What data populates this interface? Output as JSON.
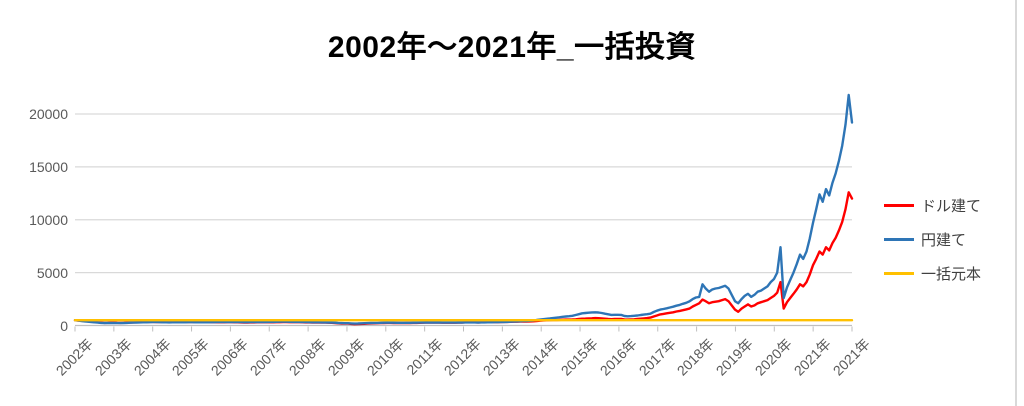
{
  "title": "2002年〜2021年_一括投資",
  "legend": {
    "items": [
      {
        "label": "ドル建て",
        "color": "#FF0000"
      },
      {
        "label": "円建て",
        "color": "#2E75B6"
      },
      {
        "label": "一括元本",
        "color": "#FFC000"
      }
    ]
  },
  "colors": {
    "grid": "#D9D9D9",
    "axis": "#BFBFBF",
    "axis_text": "#595959",
    "title_text": "#000000"
  },
  "chart_data": {
    "type": "line",
    "title": "2002年〜2021年_一括投資",
    "xlabel": "",
    "ylabel": "",
    "ylim": [
      0,
      22000
    ],
    "y_ticks": [
      0,
      5000,
      10000,
      15000,
      20000
    ],
    "grid": true,
    "legend_position": "right",
    "x_labels": [
      "2002年",
      "2003年",
      "2004年",
      "2005年",
      "2006年",
      "2007年",
      "2008年",
      "2009年",
      "2010年",
      "2011年",
      "2012年",
      "2013年",
      "2014年",
      "2015年",
      "2016年",
      "2017年",
      "2018年",
      "2019年",
      "2020年",
      "2021年",
      "2021年"
    ],
    "x_start_year": 2002,
    "points_per_year": 12,
    "series": [
      {
        "name": "ドル建て",
        "color": "#FF0000",
        "values": [
          500,
          470,
          440,
          420,
          390,
          360,
          330,
          300,
          270,
          250,
          260,
          270,
          270,
          255,
          250,
          260,
          270,
          285,
          295,
          305,
          315,
          325,
          330,
          340,
          340,
          335,
          325,
          315,
          305,
          300,
          305,
          310,
          315,
          320,
          318,
          320,
          320,
          315,
          310,
          305,
          300,
          298,
          300,
          305,
          302,
          298,
          305,
          310,
          310,
          305,
          298,
          292,
          288,
          285,
          290,
          295,
          298,
          300,
          302,
          300,
          300,
          305,
          310,
          315,
          320,
          318,
          315,
          312,
          308,
          310,
          305,
          295,
          290,
          285,
          280,
          278,
          275,
          270,
          265,
          260,
          240,
          210,
          190,
          185,
          180,
          150,
          120,
          135,
          150,
          165,
          180,
          195,
          205,
          215,
          225,
          240,
          250,
          245,
          240,
          235,
          230,
          228,
          232,
          238,
          242,
          248,
          255,
          265,
          280,
          278,
          275,
          272,
          270,
          268,
          265,
          268,
          262,
          266,
          270,
          275,
          300,
          305,
          302,
          298,
          295,
          298,
          302,
          305,
          308,
          310,
          308,
          320,
          340,
          345,
          350,
          355,
          360,
          365,
          370,
          375,
          385,
          395,
          420,
          450,
          480,
          490,
          500,
          510,
          520,
          530,
          545,
          555,
          560,
          570,
          590,
          615,
          640,
          655,
          670,
          685,
          700,
          690,
          670,
          640,
          610,
          600,
          610,
          615,
          620,
          580,
          560,
          575,
          590,
          610,
          640,
          670,
          700,
          750,
          850,
          950,
          1050,
          1100,
          1150,
          1200,
          1250,
          1320,
          1380,
          1450,
          1520,
          1600,
          1800,
          1950,
          2100,
          2450,
          2300,
          2100,
          2200,
          2250,
          2300,
          2400,
          2500,
          2300,
          1900,
          1500,
          1300,
          1600,
          1800,
          2000,
          1800,
          1900,
          2100,
          2200,
          2300,
          2400,
          2600,
          2800,
          3100,
          4100,
          1600,
          2200,
          2600,
          3000,
          3400,
          3900,
          3700,
          4100,
          4800,
          5700,
          6300,
          7000,
          6700,
          7400,
          7100,
          7800,
          8300,
          9000,
          9800,
          11000,
          12600,
          12000
        ]
      },
      {
        "name": "円建て",
        "color": "#2E75B6",
        "values": [
          500,
          460,
          420,
          390,
          360,
          330,
          300,
          270,
          250,
          235,
          240,
          245,
          240,
          230,
          225,
          235,
          250,
          265,
          275,
          285,
          295,
          300,
          305,
          315,
          320,
          318,
          312,
          305,
          300,
          295,
          298,
          302,
          305,
          308,
          305,
          308,
          310,
          305,
          300,
          298,
          302,
          305,
          310,
          315,
          318,
          320,
          325,
          330,
          330,
          328,
          322,
          318,
          315,
          312,
          318,
          322,
          325,
          328,
          332,
          335,
          340,
          345,
          350,
          355,
          360,
          355,
          350,
          345,
          340,
          342,
          335,
          320,
          310,
          305,
          300,
          298,
          295,
          290,
          285,
          280,
          262,
          240,
          225,
          222,
          220,
          195,
          180,
          192,
          205,
          215,
          225,
          235,
          242,
          250,
          258,
          268,
          270,
          265,
          262,
          258,
          255,
          252,
          256,
          260,
          264,
          268,
          272,
          282,
          290,
          287,
          284,
          282,
          280,
          278,
          275,
          278,
          272,
          276,
          280,
          285,
          290,
          295,
          292,
          290,
          288,
          292,
          296,
          300,
          305,
          310,
          315,
          322,
          330,
          340,
          355,
          370,
          385,
          400,
          415,
          430,
          450,
          470,
          520,
          560,
          600,
          630,
          660,
          700,
          740,
          780,
          820,
          850,
          880,
          920,
          990,
          1070,
          1150,
          1180,
          1210,
          1240,
          1250,
          1230,
          1180,
          1120,
          1060,
          1000,
          1010,
          1010,
          1000,
          900,
          870,
          890,
          920,
          950,
          990,
          1030,
          1070,
          1120,
          1280,
          1400,
          1500,
          1560,
          1630,
          1700,
          1780,
          1870,
          1950,
          2050,
          2150,
          2280,
          2500,
          2650,
          2700,
          3900,
          3500,
          3200,
          3400,
          3500,
          3550,
          3650,
          3750,
          3500,
          2900,
          2300,
          2100,
          2500,
          2800,
          3000,
          2700,
          2900,
          3200,
          3300,
          3500,
          3700,
          4100,
          4400,
          5000,
          7400,
          2600,
          3600,
          4300,
          5000,
          5800,
          6700,
          6300,
          7000,
          8200,
          9700,
          11000,
          12400,
          11700,
          12900,
          12300,
          13500,
          14400,
          15600,
          17000,
          19000,
          21800,
          19200
        ]
      },
      {
        "name": "一括元本",
        "color": "#FFC000",
        "values": [
          500,
          500
        ]
      }
    ]
  }
}
